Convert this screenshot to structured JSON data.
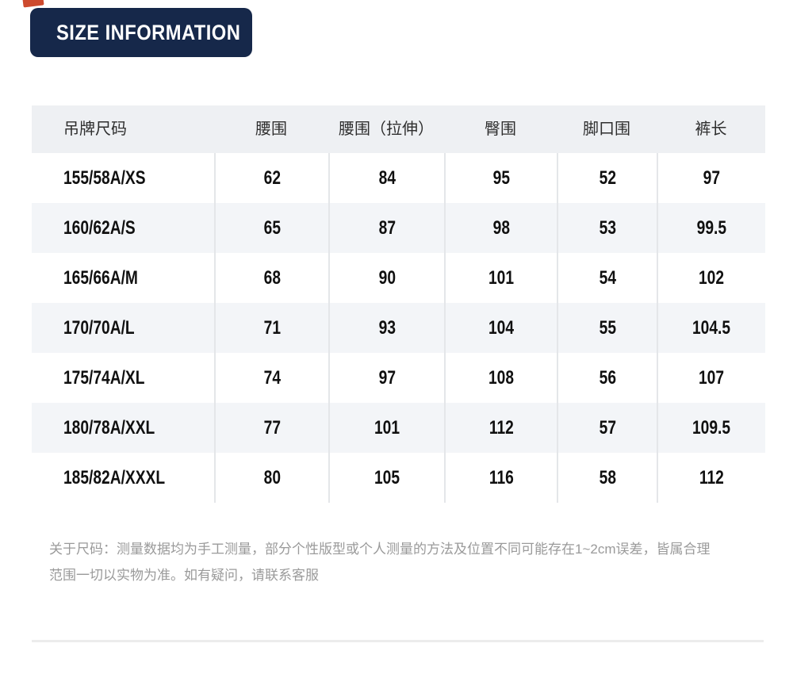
{
  "page": {
    "background": "#ffffff"
  },
  "title_banner": {
    "label": "SIZE INFORMATION",
    "bg_color": "#16284a",
    "text_color": "#ffffff",
    "accent_color": "#cd4a2e"
  },
  "size_table": {
    "columns": [
      "吊牌尺码",
      "腰围",
      "腰围（拉伸）",
      "臀围",
      "脚口围",
      "裤长"
    ],
    "rows": [
      {
        "size": "155/58A/XS",
        "values": [
          "62",
          "84",
          "95",
          "52",
          "97"
        ]
      },
      {
        "size": "160/62A/S",
        "values": [
          "65",
          "87",
          "98",
          "53",
          "99.5"
        ]
      },
      {
        "size": "165/66A/M",
        "values": [
          "68",
          "90",
          "101",
          "54",
          "102"
        ]
      },
      {
        "size": "170/70A/L",
        "values": [
          "71",
          "93",
          "104",
          "55",
          "104.5"
        ]
      },
      {
        "size": "175/74A/XL",
        "values": [
          "74",
          "97",
          "108",
          "56",
          "107"
        ]
      },
      {
        "size": "180/78A/XXL",
        "values": [
          "77",
          "101",
          "112",
          "57",
          "109.5"
        ]
      },
      {
        "size": "185/82A/XXXL",
        "values": [
          "80",
          "105",
          "116",
          "58",
          "112"
        ]
      }
    ],
    "header_bg": "#eef0f3",
    "stripe_bg": "#f3f5f8",
    "divider_color": "#e4e6e9"
  },
  "footnote": {
    "lines": [
      "关于尺码：测量数据均为手工测量，部分个性版型或个人测量的方法及位置不同可能存在1~2cm误差，皆属合理",
      "范围一切以实物为准。如有疑问，请联系客服"
    ]
  }
}
